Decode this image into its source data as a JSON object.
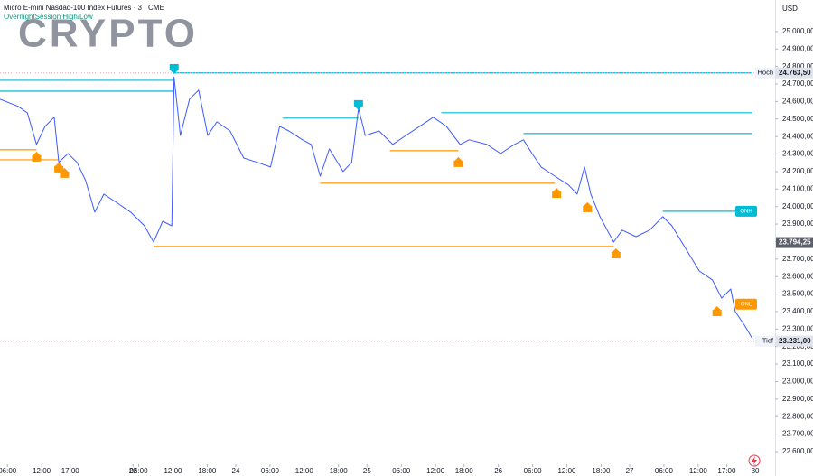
{
  "chart_data": {
    "type": "line",
    "title": "Micro E-mini Nasdaq-100 Index Futures · 3 · CME",
    "subtitle": "OvernightSession High/Low",
    "watermark": "CRYPTO",
    "currency": "USD",
    "color": "#3d5afe",
    "x": [
      -1.3,
      1.9,
      3.5,
      5.1,
      6.6,
      8.2,
      9.0,
      10.6,
      12.2,
      13.7,
      15.3,
      16.9,
      19.3,
      21.6,
      24.0,
      25.6,
      27.2,
      28.8,
      29.2,
      30.3,
      31.9,
      33.5,
      35.1,
      36.7,
      39.0,
      41.4,
      43.8,
      46.1,
      47.7,
      49.3,
      51.7,
      53.2,
      54.8,
      56.4,
      58.8,
      60.3,
      61.5,
      62.7,
      65.1,
      67.5,
      69.8,
      72.2,
      74.6,
      76.9,
      79.3,
      80.9,
      84.0,
      86.4,
      88.8,
      90.4,
      91.9,
      93.5,
      95.9,
      98.3,
      99.8,
      101.1,
      102.2,
      103.8,
      106.2,
      107.7,
      110.1,
      112.5,
      114.8,
      116.4,
      118.8,
      121.2,
      123.5,
      125.1,
      126.7,
      127.5,
      129.1,
      130.5
    ],
    "values": [
      24613,
      24572,
      24535,
      24355,
      24458,
      24510,
      24252,
      24303,
      24252,
      24148,
      23968,
      24071,
      24019,
      23968,
      23890,
      23797,
      23916,
      23890,
      24740,
      24406,
      24613,
      24665,
      24406,
      24484,
      24432,
      24277,
      24252,
      24226,
      24458,
      24432,
      24381,
      24355,
      24174,
      24329,
      24200,
      24252,
      24561,
      24406,
      24432,
      24355,
      24406,
      24458,
      24510,
      24458,
      24355,
      24381,
      24355,
      24303,
      24355,
      24381,
      24303,
      24226,
      24174,
      24123,
      24071,
      24226,
      24071,
      23942,
      23797,
      23865,
      23828,
      23865,
      23942,
      23890,
      23761,
      23632,
      23581,
      23477,
      23529,
      23400,
      23323,
      23245
    ],
    "xlim": [
      -1.3,
      134
    ],
    "xticks": [
      {
        "value": 0,
        "label": "06:00"
      },
      {
        "value": 6,
        "label": "12:00"
      },
      {
        "value": 11,
        "label": "17:00"
      },
      22,
      {
        "value": 23,
        "label": "06:00"
      },
      {
        "value": 29,
        "label": "12:00"
      },
      {
        "value": 35,
        "label": "18:00"
      },
      {
        "value": 40,
        "label": "24"
      },
      {
        "value": 46,
        "label": "06:00"
      },
      {
        "value": 52,
        "label": "12:00"
      },
      {
        "value": 58,
        "label": "18:00"
      },
      {
        "value": 63,
        "label": "25"
      },
      {
        "value": 69,
        "label": "06:00"
      },
      {
        "value": 75,
        "label": "12:00"
      },
      {
        "value": 80,
        "label": "18:00"
      },
      {
        "value": 86,
        "label": "26"
      },
      {
        "value": 92,
        "label": "06:00"
      },
      {
        "value": 98,
        "label": "12:00"
      },
      {
        "value": 104,
        "label": "18:00"
      },
      {
        "value": 109,
        "label": "27"
      },
      {
        "value": 115,
        "label": "06:00"
      },
      {
        "value": 121,
        "label": "12:00"
      },
      {
        "value": 126,
        "label": "17:00"
      },
      {
        "value": 131,
        "label": "30"
      }
    ],
    "ylim": [
      22538,
      25180
    ],
    "yticks": [
      {
        "value": 25000,
        "label": "25.000,00"
      },
      {
        "value": 24900,
        "label": "24.900,00"
      },
      {
        "value": 24800,
        "label": "24.800,00"
      },
      {
        "value": 24700,
        "label": "24.700,00"
      },
      {
        "value": 24600,
        "label": "24.600,00"
      },
      {
        "value": 24500,
        "label": "24.500,00"
      },
      {
        "value": 24400,
        "label": "24.400,00"
      },
      {
        "value": 24300,
        "label": "24.300,00"
      },
      {
        "value": 24200,
        "label": "24.200,00"
      },
      {
        "value": 24100,
        "label": "24.100,00"
      },
      {
        "value": 24000,
        "label": "24.000,00"
      },
      {
        "value": 23900,
        "label": "23.900,00"
      },
      {
        "value": 23800,
        "label": "23.800,00"
      },
      {
        "value": 23700,
        "label": "23.700,00"
      },
      {
        "value": 23600,
        "label": "23.600,00"
      },
      {
        "value": 23500,
        "label": "23.500,00"
      },
      {
        "value": 23400,
        "label": "23.400,00"
      },
      {
        "value": 23300,
        "label": "23.300,00"
      },
      {
        "value": 23200,
        "label": "23.200,00"
      },
      {
        "value": 23100,
        "label": "23.100,00"
      },
      {
        "value": 23000,
        "label": "23.000,00"
      },
      {
        "value": 22900,
        "label": "22.900,00"
      },
      {
        "value": 22800,
        "label": "22.800,00"
      },
      {
        "value": 22700,
        "label": "22.700,00"
      },
      {
        "value": 22600,
        "label": "22.600,00"
      }
    ],
    "levels": [
      {
        "x": [
          -1.3,
          29.2
        ],
        "value": 24721,
        "color": "#00bcd4"
      },
      {
        "x": [
          -1.3,
          29.2
        ],
        "value": 24659,
        "color": "#00bcd4"
      },
      {
        "x": [
          29.2,
          130.5
        ],
        "value": 24763.5,
        "color": "#00bcd4"
      },
      {
        "x": [
          48.2,
          61.5
        ],
        "value": 24505,
        "color": "#00bcd4"
      },
      {
        "x": [
          76.0,
          130.5
        ],
        "value": 24536,
        "color": "#00bcd4"
      },
      {
        "x": [
          90.4,
          130.5
        ],
        "value": 24417,
        "color": "#00bcd4"
      },
      {
        "x": [
          114.8,
          127.5
        ],
        "value": 23973,
        "color": "#00bcd4"
      },
      {
        "x": [
          -1.3,
          5.1
        ],
        "value": 24324,
        "color": "#ff9800"
      },
      {
        "x": [
          -1.3,
          9.0
        ],
        "value": 24267,
        "color": "#ff9800"
      },
      {
        "x": [
          25.6,
          106.2
        ],
        "value": 23772,
        "color": "#ff9800"
      },
      {
        "x": [
          54.8,
          95.9
        ],
        "value": 24133,
        "color": "#ff9800"
      },
      {
        "x": [
          67.0,
          79.0
        ],
        "value": 24319,
        "color": "#ff9800"
      }
    ],
    "markers": [
      {
        "x": 29.2,
        "price": 24757,
        "color": "#00bcd4"
      },
      {
        "x": 61.5,
        "price": 24551,
        "color": "#00bcd4"
      },
      {
        "x": 5.1,
        "price": 24314,
        "color": "#ff9800"
      },
      {
        "x": 9.0,
        "price": 24252,
        "color": "#ff9800"
      },
      {
        "x": 10.0,
        "price": 24221,
        "color": "#ff9800"
      },
      {
        "x": 79.0,
        "price": 24283,
        "color": "#ff9800"
      },
      {
        "x": 96.2,
        "price": 24107,
        "color": "#ff9800"
      },
      {
        "x": 101.6,
        "price": 24025,
        "color": "#ff9800"
      },
      {
        "x": 106.6,
        "price": 23761,
        "color": "#ff9800"
      },
      {
        "x": 124.3,
        "price": 23431,
        "color": "#ff9800"
      }
    ],
    "tags": [
      {
        "label": "ONH",
        "value": 23973,
        "color": "#00bcd4"
      },
      {
        "label": "ONL",
        "value": 23442,
        "color": "#ff9800"
      }
    ],
    "price_tags": [
      {
        "name": "Hoch",
        "value": 24763.5,
        "label": "24.763,50"
      },
      {
        "value": 23794.25,
        "label": "23.794,25"
      },
      {
        "name": "Tief",
        "value": 23231,
        "label": "23.231,00"
      }
    ]
  }
}
